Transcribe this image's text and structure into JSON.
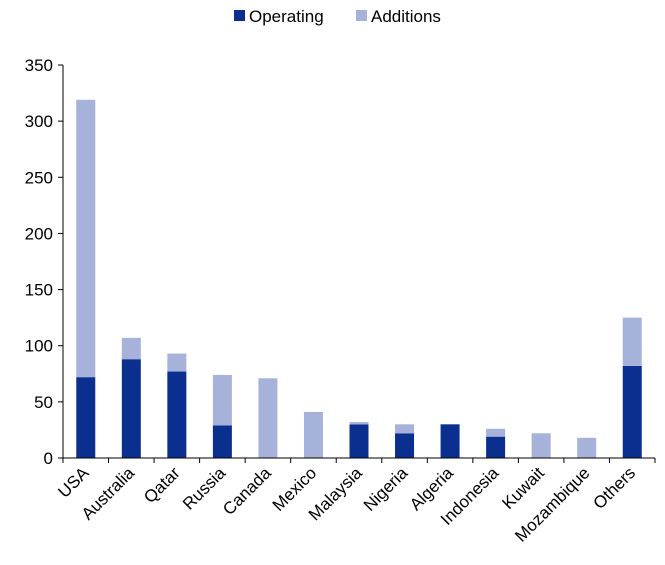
{
  "chart_data": {
    "type": "bar",
    "stacked": true,
    "categories": [
      "USA",
      "Australia",
      "Qatar",
      "Russia",
      "Canada",
      "Mexico",
      "Malaysia",
      "Nigeria",
      "Algeria",
      "Indonesia",
      "Kuwait",
      "Mozambique",
      "Others"
    ],
    "series": [
      {
        "name": "Operating",
        "color": "#0a2f8f",
        "values": [
          72,
          88,
          77,
          29,
          0,
          0,
          30,
          22,
          30,
          19,
          0,
          0,
          82
        ]
      },
      {
        "name": "Additions",
        "color": "#a7b2da",
        "values": [
          247,
          19,
          16,
          45,
          71,
          41,
          2,
          8,
          0,
          7,
          22,
          18,
          43
        ]
      }
    ],
    "ylim": [
      0,
      350
    ],
    "yticks": [
      0,
      50,
      100,
      150,
      200,
      250,
      300,
      350
    ],
    "legend_position": "top-center",
    "grid": false
  }
}
